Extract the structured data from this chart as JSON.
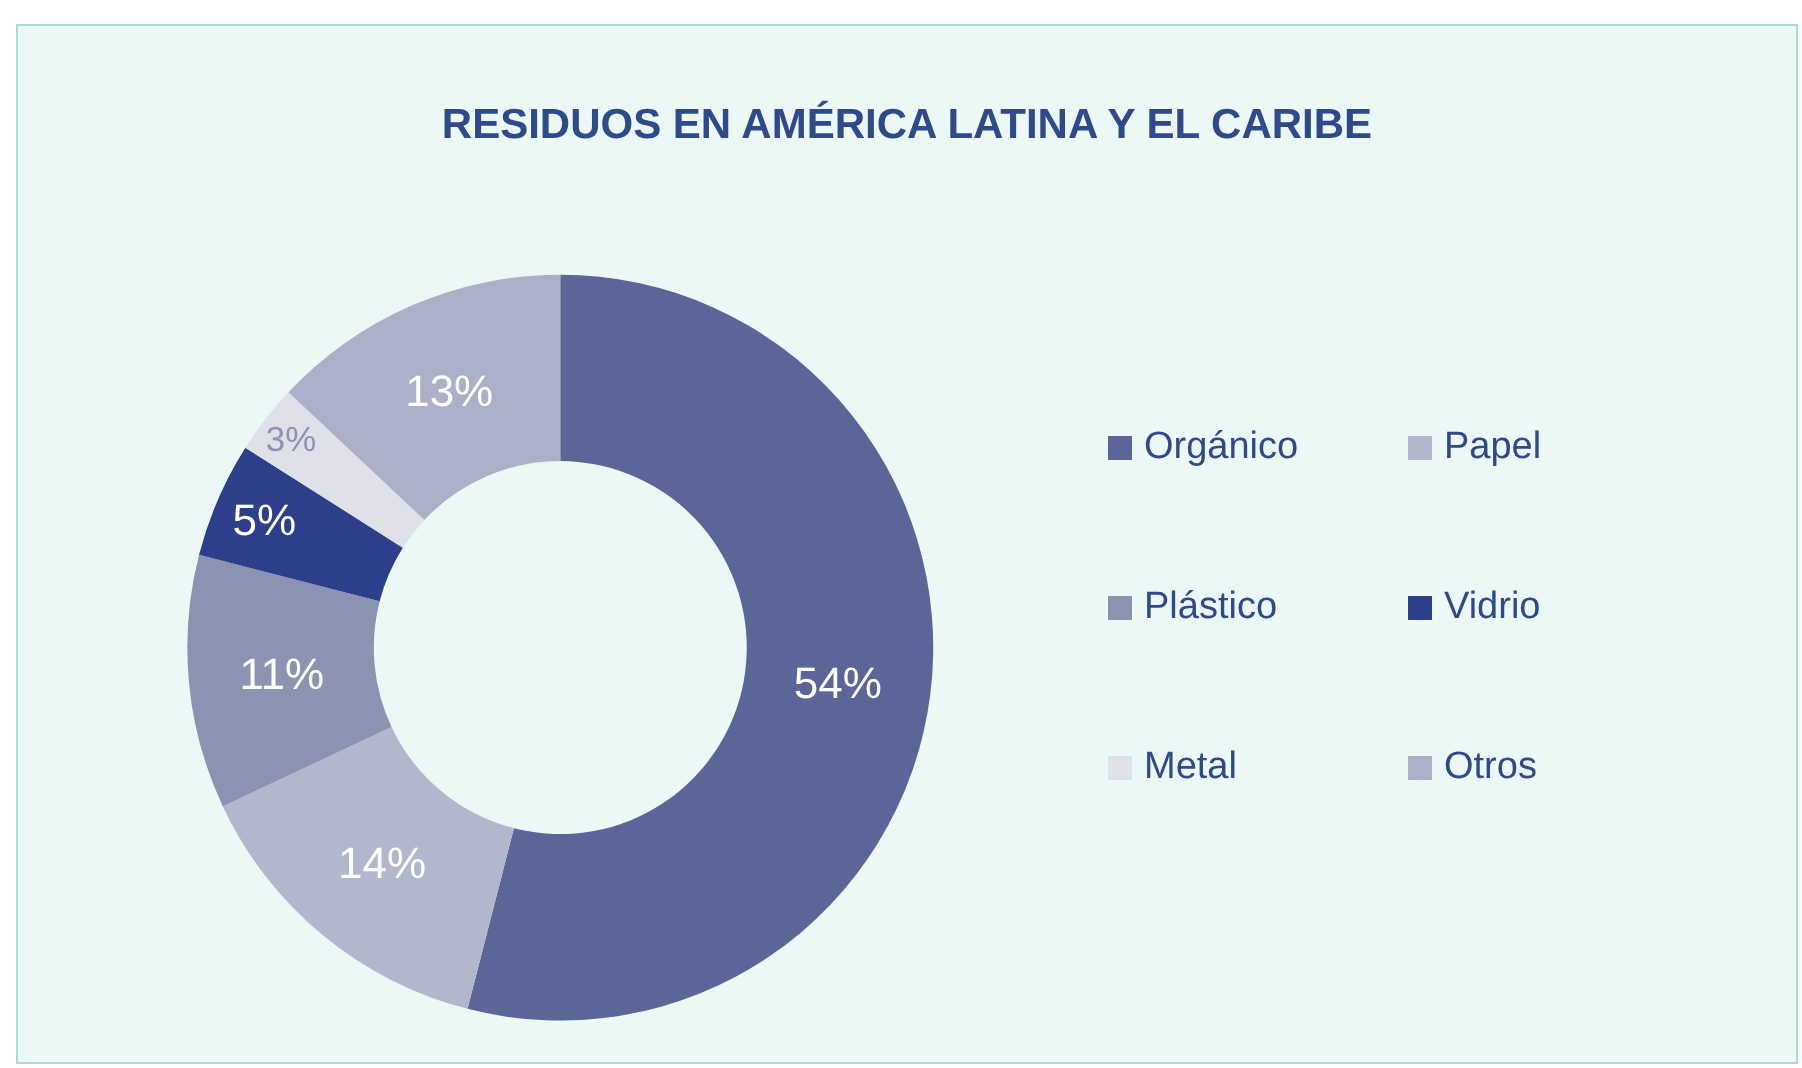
{
  "chart_data": {
    "type": "donut",
    "title": "RESIDUOS EN AMÉRICA LATINA Y EL CARIBE",
    "categories": [
      "Orgánico",
      "Papel",
      "Plástico",
      "Vidrio",
      "Metal",
      "Otros"
    ],
    "values": [
      54,
      14,
      11,
      5,
      3,
      13
    ],
    "value_labels": [
      "54%",
      "14%",
      "11%",
      "5%",
      "3%",
      "13%"
    ],
    "colors": [
      "#5b6597",
      "#b3b7cb",
      "#8c92b2",
      "#2d3f8a",
      "#dfe0e8",
      "#acb0c6"
    ],
    "legend": "right"
  }
}
